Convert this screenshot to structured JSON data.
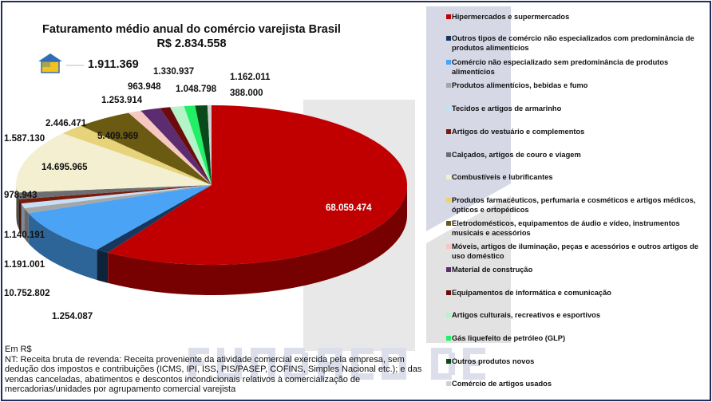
{
  "watermark": "FUNDAÇÃO DE DADOS",
  "chart_data": {
    "type": "pie",
    "title": "Faturamento médio anual do comércio varejista Brasil",
    "subtitle": "R$ 2.834.558",
    "unit": "Em R$",
    "legend_position": "right",
    "categories": [
      {
        "name": "Hipermercados e supermercados",
        "value": 68059474,
        "label": "68.059.474",
        "color": "#c00000"
      },
      {
        "name": "Outros tipos de comércio não especializados com predominância de produtos alimentícios",
        "value": 1254087,
        "label": "1.254.087",
        "color": "#17375e"
      },
      {
        "name": "Comércio não especializado sem predominância de produtos alimentícios",
        "value": 10752802,
        "label": "10.752.802",
        "color": "#4aa3f5"
      },
      {
        "name": "Produtos alimentícios, bebidas e fumo",
        "value": 1191001,
        "label": "1.191.001",
        "color": "#a6a6a6"
      },
      {
        "name": "Tecidos e artigos de armarinho",
        "value": 1140191,
        "label": "1.140.191",
        "color": "#c5e0f5"
      },
      {
        "name": "Artigos do vestuário e complementos",
        "value": 978943,
        "label": "978.943",
        "color": "#7b1a0a"
      },
      {
        "name": "Calçados, artigos de couro e viagem",
        "value": 1587130,
        "label": "1.587.130",
        "color": "#6d6e71"
      },
      {
        "name": "Combustíveis e lubrificantes",
        "value": 14695965,
        "label": "14.695.965",
        "color": "#f3efd0"
      },
      {
        "name": "Produtos farmacêuticos, perfumaria e cosméticos e artigos médicos, ópticos e ortopédicos",
        "value": 2446471,
        "label": "2.446.471",
        "color": "#e6d37a"
      },
      {
        "name": "Eletrodomésticos, equipamentos de áudio e vídeo, instrumentos musicais e acessórios",
        "value": 5409969,
        "label": "5.409.969",
        "color": "#6b5a12"
      },
      {
        "name": "Móveis, artigos de iluminação, peças e acessórios e outros artigos de uso doméstico",
        "value": 1253914,
        "label": "1.253.914",
        "color": "#f6c8c0"
      },
      {
        "name": "Material de construção",
        "value": 1911369,
        "label": "1.911.369",
        "color": "#5b2c6f"
      },
      {
        "name": "Equipamentos de informática e comunicação",
        "value": 963948,
        "label": "963.948",
        "color": "#6b0c0c"
      },
      {
        "name": "Artigos culturais, recreativos e esportivos",
        "value": 1330937,
        "label": "1.330.937",
        "color": "#b3f5c8"
      },
      {
        "name": "Gás liquefeito de petróleo (GLP)",
        "value": 1048798,
        "label": "1.048.798",
        "color": "#22ee66"
      },
      {
        "name": "Outros produtos novos",
        "value": 1162011,
        "label": "1.162.011",
        "color": "#0a4a1a"
      },
      {
        "name": "Comércio de artigos usados",
        "value": 388000,
        "label": "388.000",
        "color": "#d0d0d0"
      }
    ]
  },
  "notes": {
    "unit": "Em R$",
    "text": "NT: Receita bruta de revenda: Receita proveniente da atividade comercial exercida pela empresa, sem dedução dos impostos e contribuições (ICMS, IPI, ISS, PIS/PASEP, COFINS, Simples Nacional etc.); e das vendas canceladas, abatimentos e descontos incondicionais relativos à comercialização de mercadorias/unidades por agrupamento comercial varejista"
  }
}
